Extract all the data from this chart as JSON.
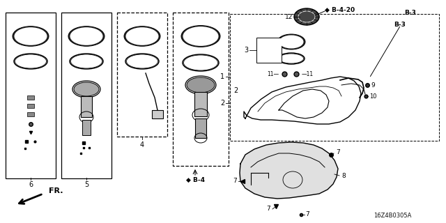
{
  "part_code": "16Z4B0305A",
  "background": "#ffffff",
  "fig_w": 6.4,
  "fig_h": 3.2,
  "dpi": 100
}
